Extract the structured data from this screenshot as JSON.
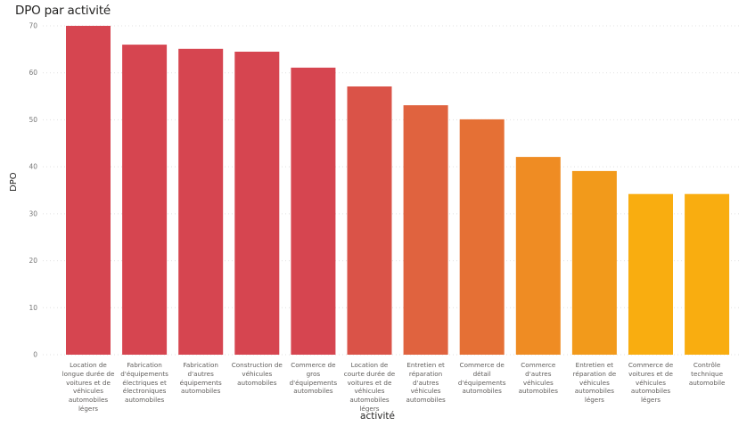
{
  "chart_data": {
    "type": "bar",
    "title": "DPO par activité",
    "xlabel": "activité",
    "ylabel": "DPO",
    "ylim": [
      0,
      70
    ],
    "yticks": [
      0,
      10,
      20,
      30,
      40,
      50,
      60,
      70
    ],
    "grid": true,
    "categories": [
      "Location de longue durée de voitures et de véhicules automobiles légers",
      "Fabrication d'équipements électriques et électroniques automobiles",
      "Fabrication d'autres équipements automobiles",
      "Construction de véhicules automobiles",
      "Commerce de gros d'équipements automobiles",
      "Location de courte durée de voitures et de véhicules automobiles légers",
      "Entretien et réparation d'autres véhicules automobiles",
      "Commerce de détail d'équipements automobiles",
      "Commerce d'autres véhicules automobiles",
      "Entretien et réparation de véhicules automobiles légers",
      "Commerce de voitures et de véhicules automobiles légers",
      "Contrôle technique automobile"
    ],
    "category_lines": [
      [
        "Location de",
        "longue durée de",
        "voitures et de",
        "véhicules",
        "automobiles",
        "légers"
      ],
      [
        "Fabrication",
        "d'équipements",
        "électriques et",
        "électroniques",
        "automobiles"
      ],
      [
        "Fabrication",
        "d'autres",
        "équipements",
        "automobiles"
      ],
      [
        "Construction de",
        "véhicules",
        "automobiles"
      ],
      [
        "Commerce de",
        "gros",
        "d'équipements",
        "automobiles"
      ],
      [
        "Location de",
        "courte durée de",
        "voitures et de",
        "véhicules",
        "automobiles",
        "légers"
      ],
      [
        "Entretien et",
        "réparation",
        "d'autres véhicules",
        "automobiles"
      ],
      [
        "Commerce de",
        "détail",
        "d'équipements",
        "automobiles"
      ],
      [
        "Commerce",
        "d'autres véhicules",
        "automobiles"
      ],
      [
        "Entretien et",
        "réparation de",
        "véhicules",
        "automobiles",
        "légers"
      ],
      [
        "Commerce de",
        "voitures et de",
        "véhicules",
        "automobiles",
        "légers"
      ],
      [
        "Contrôle",
        "technique",
        "automobile"
      ]
    ],
    "values": [
      70.0,
      66.0,
      65.1,
      64.5,
      61.1,
      57.1,
      53.1,
      50.1,
      42.1,
      39.1,
      34.2,
      34.2
    ],
    "colors": [
      "#d64550",
      "#d64550",
      "#d64550",
      "#d64550",
      "#d64550",
      "#da5348",
      "#e0633f",
      "#e57035",
      "#ef8c23",
      "#f29a1b",
      "#f9ad10",
      "#f9ad10"
    ],
    "grid_color": "#e1e1e1"
  }
}
